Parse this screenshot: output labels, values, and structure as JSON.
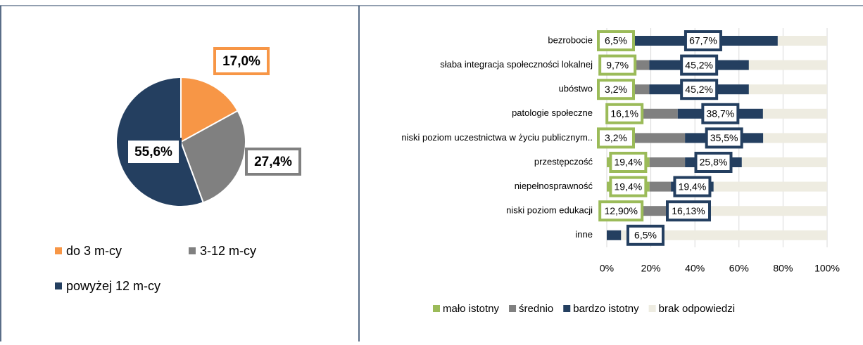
{
  "chart_data": [
    {
      "type": "pie",
      "categories": [
        "do 3 m-cy",
        "3-12 m-cy",
        "powyżej 12 m-cy"
      ],
      "values": [
        17.0,
        27.4,
        55.6
      ],
      "value_labels": [
        "17,0%",
        "27,4%",
        "55,6%"
      ],
      "colors": [
        "#f79646",
        "#808080",
        "#243f60"
      ]
    },
    {
      "type": "stacked-bar-horizontal",
      "categories": [
        "bezrobocie",
        "słaba integracja społeczności lokalnej",
        "ubóstwo",
        "patologie społeczne",
        "niski poziom uczestnictwa w życiu publicznym..",
        "przestępczość",
        "niepełnosprawność",
        "niski poziom edukacji",
        "inne"
      ],
      "series": [
        {
          "name": "mało istotny",
          "color": "#9bbb59",
          "values": [
            6.5,
            9.7,
            3.2,
            16.1,
            3.2,
            19.4,
            19.4,
            12.9,
            0
          ],
          "value_labels": [
            "6,5%",
            "9,7%",
            "3,2%",
            "16,1%",
            "3,2%",
            "19,4%",
            "19,4%",
            "12,90%",
            null
          ]
        },
        {
          "name": "średnio",
          "color": "#808080",
          "values": [
            3.4,
            9.6,
            16.1,
            16.1,
            32.3,
            16.1,
            9.7,
            16.1,
            0
          ]
        },
        {
          "name": "bardzo istotny",
          "color": "#243f60",
          "values": [
            67.7,
            45.2,
            45.2,
            38.7,
            35.5,
            25.8,
            19.4,
            16.13,
            6.5
          ],
          "value_labels": [
            "67,7%",
            "45,2%",
            "45,2%",
            "38,7%",
            "35,5%",
            "25,8%",
            "19,4%",
            "16,13%",
            "6,5%"
          ]
        },
        {
          "name": "brak odpowiedzi",
          "color": "#eeece1",
          "values": [
            22.4,
            35.5,
            35.5,
            29.1,
            29.0,
            38.7,
            51.5,
            54.87,
            93.5
          ]
        }
      ],
      "xlim": [
        0,
        100
      ],
      "xticks": [
        {
          "value": 0,
          "label": "0%"
        },
        {
          "value": 20,
          "label": "20%"
        },
        {
          "value": 40,
          "label": "40%"
        },
        {
          "value": 60,
          "label": "60%"
        },
        {
          "value": 80,
          "label": "80%"
        },
        {
          "value": 100,
          "label": "100%"
        }
      ],
      "grid": true,
      "legend": "bottom"
    }
  ]
}
